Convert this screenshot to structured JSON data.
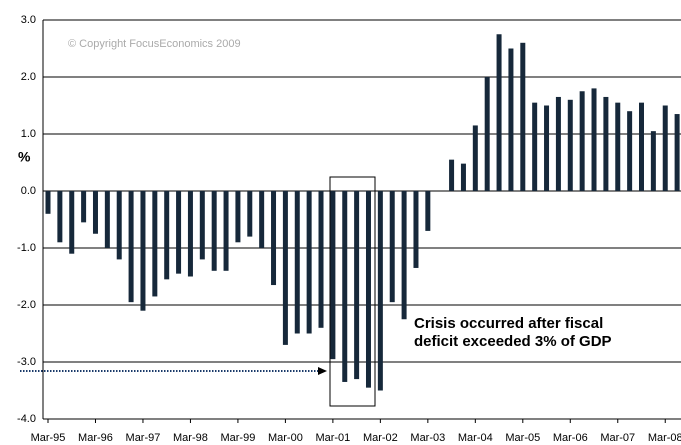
{
  "chart_data": {
    "type": "bar",
    "y_label": "%",
    "copyright": "© Copyright FocusEconomics 2009",
    "annotation": [
      "Crisis occurred after fiscal",
      "deficit exceeded 3% of GDP"
    ],
    "color": "#16283a",
    "grid": true,
    "ylim": [
      -4,
      3
    ],
    "yticks": [
      {
        "value": 3,
        "label": "3.0"
      },
      {
        "value": 2,
        "label": "2.0"
      },
      {
        "value": 1,
        "label": "1.0"
      },
      {
        "value": 0,
        "label": "0.0"
      },
      {
        "value": -1,
        "label": "-1.0"
      },
      {
        "value": -2,
        "label": "-2.0"
      },
      {
        "value": -3,
        "label": "-3.0"
      },
      {
        "value": -4,
        "label": "-4.0"
      }
    ],
    "categories": [
      "Mar-95",
      null,
      null,
      null,
      "Mar-96",
      null,
      null,
      null,
      "Mar-97",
      null,
      null,
      null,
      "Mar-98",
      null,
      null,
      null,
      "Mar-99",
      null,
      null,
      null,
      "Mar-00",
      null,
      null,
      null,
      "Mar-01",
      null,
      null,
      null,
      "Mar-02",
      null,
      null,
      null,
      "Mar-03",
      null,
      null,
      null,
      "Mar-04",
      null,
      null,
      null,
      "Mar-05",
      null,
      null,
      null,
      "Mar-06",
      null,
      null,
      null,
      "Mar-07",
      null,
      null,
      null,
      "Mar-08",
      null
    ],
    "values": [
      -0.4,
      -0.9,
      -1.1,
      -0.55,
      -0.75,
      -1.0,
      -1.2,
      -1.95,
      -2.1,
      -1.85,
      -1.55,
      -1.45,
      -1.5,
      -1.2,
      -1.4,
      -1.4,
      -0.9,
      -0.8,
      -1.0,
      -1.65,
      -2.7,
      -2.5,
      -2.5,
      -2.4,
      -2.95,
      -3.35,
      -3.3,
      -3.45,
      -3.5,
      -1.95,
      -2.25,
      -1.35,
      -0.7,
      0,
      0.55,
      0.48,
      1.15,
      2.0,
      2.75,
      2.5,
      2.6,
      1.55,
      1.5,
      1.65,
      1.6,
      1.75,
      1.8,
      1.65,
      1.55,
      1.4,
      1.55,
      1.05,
      1.5,
      1.35
    ]
  }
}
